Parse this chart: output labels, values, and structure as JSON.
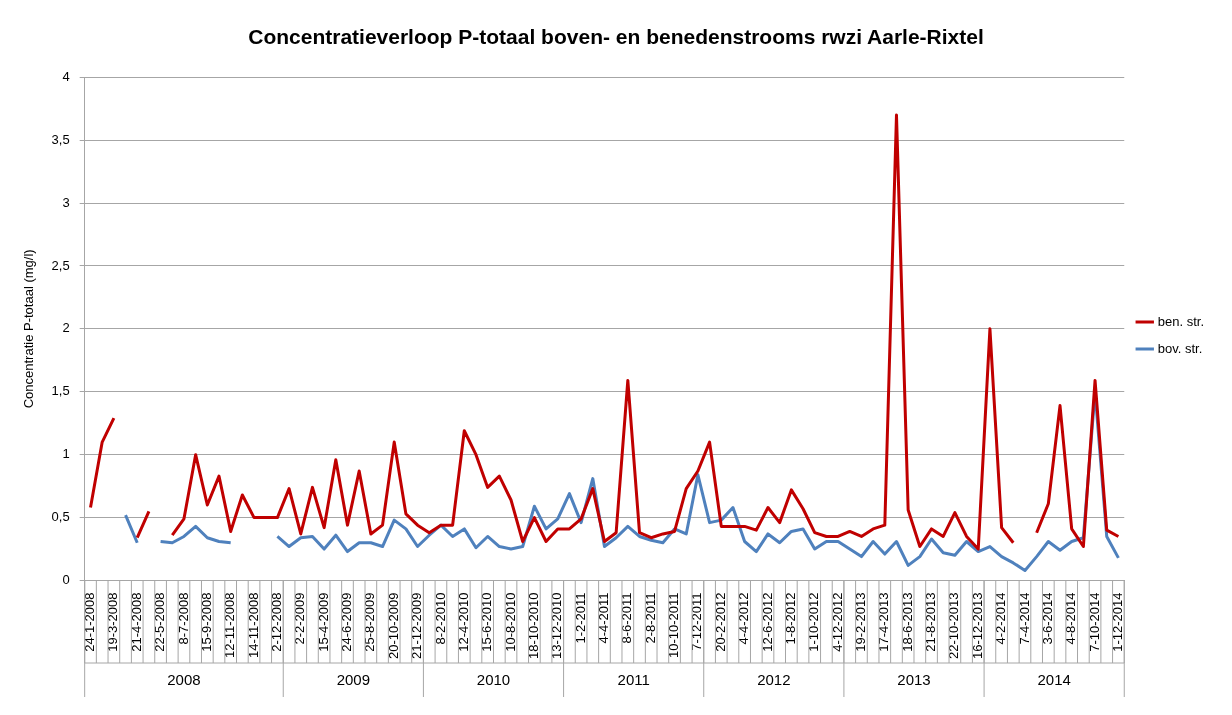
{
  "chart_data": {
    "type": "line",
    "title": "Concentratieverloop P-totaal boven- en benedenstrooms rwzi Aarle-Rixtel",
    "ylabel": "Concentratie P-totaal (mg/l)",
    "categories": [
      "24-1-2008",
      null,
      "19-3-2008",
      null,
      "21-4-2008",
      null,
      "22-5-2008",
      null,
      "8-7-2008",
      null,
      "15-9-2008",
      null,
      "12-11-2008",
      null,
      "14-11-2008",
      null,
      "2-12-2008",
      null,
      "2-2-2009",
      null,
      "15-4-2009",
      null,
      "24-6-2009",
      null,
      "25-8-2009",
      null,
      "20-10-2009",
      null,
      "21-12-2009",
      null,
      "8-2-2010",
      null,
      "12-4-2010",
      null,
      "15-6-2010",
      null,
      "10-8-2010",
      null,
      "18-10-2010",
      null,
      "13-12-2010",
      null,
      "1-2-2011",
      null,
      "4-4-2011",
      null,
      "8-6-2011",
      null,
      "2-8-2011",
      null,
      "10-10-2011",
      null,
      "7-12-2011",
      null,
      "20-2-2012",
      null,
      "4-4-2012",
      null,
      "12-6-2012",
      null,
      "1-8-2012",
      null,
      "1-10-2012",
      null,
      "4-12-2012",
      null,
      "19-2-2013",
      null,
      "17-4-2013",
      null,
      "18-6-2013",
      null,
      "21-8-2013",
      null,
      "22-10-2013",
      null,
      "16-12-2013",
      null,
      "4-2-2014",
      null,
      "7-4-2014",
      null,
      "3-6-2014",
      null,
      "4-8-2014",
      null,
      "7-10-2014",
      null,
      "1-12-2014"
    ],
    "series": [
      {
        "name": "ben. str.",
        "color": "#c00000",
        "values": [
          0.58,
          1.1,
          1.29,
          null,
          0.34,
          0.55,
          null,
          0.36,
          0.49,
          1.0,
          0.6,
          0.83,
          0.39,
          0.68,
          0.5,
          0.5,
          0.5,
          0.73,
          0.37,
          0.74,
          0.42,
          0.96,
          0.44,
          0.87,
          0.37,
          0.44,
          1.1,
          0.53,
          0.44,
          0.38,
          0.44,
          0.44,
          1.19,
          1.0,
          0.74,
          0.83,
          0.64,
          0.31,
          0.5,
          0.31,
          0.41,
          0.41,
          0.49,
          0.73,
          0.31,
          0.38,
          1.59,
          0.38,
          0.34,
          0.37,
          0.39,
          0.73,
          0.87,
          1.1,
          0.43,
          0.43,
          0.43,
          0.4,
          0.58,
          0.46,
          0.72,
          0.57,
          0.38,
          0.35,
          0.35,
          0.39,
          0.35,
          0.41,
          0.44,
          3.7,
          0.56,
          0.27,
          0.41,
          0.35,
          0.54,
          0.35,
          0.25,
          2.0,
          0.42,
          0.3,
          null,
          0.38,
          0.61,
          1.39,
          0.41,
          0.27,
          1.59,
          0.4,
          0.35
        ]
      },
      {
        "name": "bov. str.",
        "color": "#4f81bd",
        "values": [
          null,
          null,
          null,
          0.52,
          0.3,
          null,
          0.31,
          0.3,
          0.35,
          0.43,
          0.34,
          0.31,
          0.3,
          null,
          null,
          null,
          0.35,
          0.27,
          0.34,
          0.35,
          0.25,
          0.36,
          0.23,
          0.3,
          0.3,
          0.27,
          0.48,
          0.41,
          0.27,
          0.36,
          0.44,
          0.35,
          0.41,
          0.26,
          0.35,
          0.27,
          0.25,
          0.27,
          0.59,
          0.41,
          0.49,
          0.69,
          0.46,
          0.81,
          0.27,
          0.34,
          0.43,
          0.35,
          0.32,
          0.3,
          0.41,
          0.37,
          0.84,
          0.46,
          0.48,
          0.58,
          0.31,
          0.23,
          0.37,
          0.3,
          0.39,
          0.41,
          0.25,
          0.31,
          0.31,
          0.25,
          0.19,
          0.31,
          0.21,
          0.31,
          0.12,
          0.19,
          0.33,
          0.22,
          0.2,
          0.31,
          0.23,
          0.27,
          0.19,
          0.14,
          0.08,
          0.19,
          0.31,
          0.24,
          0.31,
          0.34,
          1.5,
          0.35,
          0.18
        ]
      }
    ],
    "ylim": [
      0,
      4
    ],
    "yticks": [
      0,
      {
        "value": 0.5,
        "label": "0,5"
      },
      1,
      {
        "value": 1.5,
        "label": "1,5"
      },
      2,
      {
        "value": 2.5,
        "label": "2,5"
      },
      3,
      {
        "value": 3.5,
        "label": "3,5"
      },
      4
    ],
    "annotations": [
      "2008",
      "2009",
      "2010",
      "2011",
      "2012",
      "2013",
      "2014"
    ],
    "grid": "y",
    "legend": "right",
    "marker": "none",
    "line_style": "solid"
  }
}
